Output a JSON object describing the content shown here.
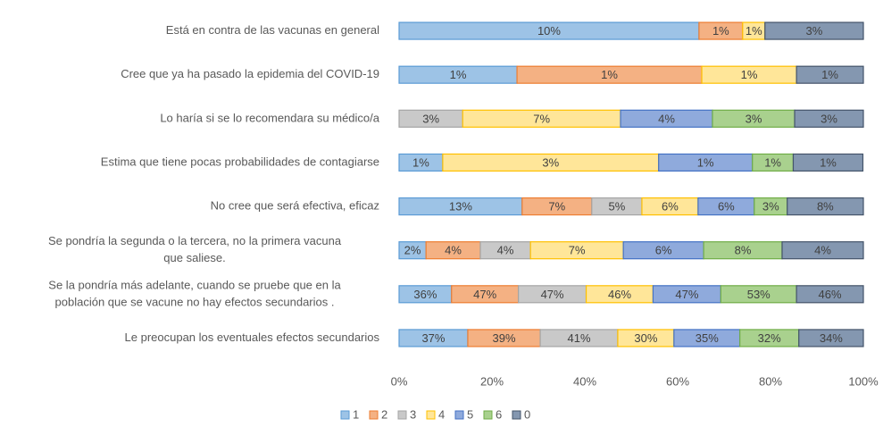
{
  "chart_data": {
    "type": "bar",
    "orientation": "horizontal",
    "stacked": true,
    "categories": [
      [
        "Está en contra de las vacunas en general"
      ],
      [
        "Cree que ya ha pasado la epidemia del COVID-19"
      ],
      [
        "Lo haría si se lo recomendara su médico/a"
      ],
      [
        "Estima que tiene pocas probabilidades de contagiarse"
      ],
      [
        "No cree que será efectiva, eficaz"
      ],
      [
        "Se pondría la segunda o la tercera, no la primera vacuna",
        "que saliese."
      ],
      [
        "Se la pondría más adelante, cuando se pruebe que en la",
        "población que se vacune no hay efectos secundarios ."
      ],
      [
        "Le preocupan los eventuales efectos secundarios"
      ]
    ],
    "series": [
      {
        "name": "1",
        "color": "#9dc3e6",
        "border": "#5b9bd5",
        "values": [
          64.6,
          25.4,
          0,
          9.4,
          26.5,
          5.8,
          11.3,
          14.8
        ],
        "labels": [
          "10%",
          "1%",
          null,
          "1%",
          "13%",
          "2%",
          "36%",
          "37%"
        ]
      },
      {
        "name": "2",
        "color": "#f4b183",
        "border": "#ed7d31",
        "values": [
          9.4,
          39.8,
          0,
          0,
          15,
          11.7,
          14.4,
          15.6
        ],
        "labels": [
          "1%",
          "1%",
          null,
          null,
          "7%",
          "4%",
          "47%",
          "39%"
        ]
      },
      {
        "name": "3",
        "color": "#c9c9c9",
        "border": "#a5a5a5",
        "values": [
          0,
          0,
          13.7,
          0,
          10.8,
          10.8,
          14.6,
          16.7
        ],
        "labels": [
          null,
          null,
          "3%",
          null,
          "5%",
          "4%",
          "47%",
          "41%"
        ]
      },
      {
        "name": "4",
        "color": "#ffe699",
        "border": "#ffc000",
        "values": [
          4.8,
          20.4,
          34,
          46.5,
          12.1,
          20,
          14.4,
          12.1
        ],
        "labels": [
          "1%",
          "1%",
          "7%",
          "3%",
          "6%",
          "7%",
          "46%",
          "30%"
        ]
      },
      {
        "name": "5",
        "color": "#8faadc",
        "border": "#4472c4",
        "values": [
          0,
          0,
          19.8,
          20.2,
          12.1,
          17.3,
          14.6,
          14.2
        ],
        "labels": [
          null,
          null,
          "4%",
          "1%",
          "6%",
          "6%",
          "47%",
          "35%"
        ]
      },
      {
        "name": "6",
        "color": "#a9d18e",
        "border": "#70ad47",
        "values": [
          0,
          0,
          17.7,
          8.8,
          7.1,
          16.9,
          16.3,
          12.7
        ],
        "labels": [
          null,
          null,
          "3%",
          "1%",
          "3%",
          "8%",
          "53%",
          "32%"
        ]
      },
      {
        "name": "0",
        "color": "#8497b0",
        "border": "#44546a",
        "values": [
          21.2,
          14.4,
          14.8,
          15,
          16.4,
          17.5,
          14.4,
          13.9
        ],
        "labels": [
          "3%",
          "1%",
          "3%",
          "1%",
          "8%",
          "4%",
          "46%",
          "34%"
        ]
      }
    ],
    "xlim": [
      0,
      100
    ],
    "xticks": [
      {
        "value": 0,
        "label": "0%"
      },
      {
        "value": 20,
        "label": "20%"
      },
      {
        "value": 40,
        "label": "40%"
      },
      {
        "value": 60,
        "label": "60%"
      },
      {
        "value": 80,
        "label": "80%"
      },
      {
        "value": 100,
        "label": "100%"
      }
    ],
    "legend": "bottom"
  }
}
